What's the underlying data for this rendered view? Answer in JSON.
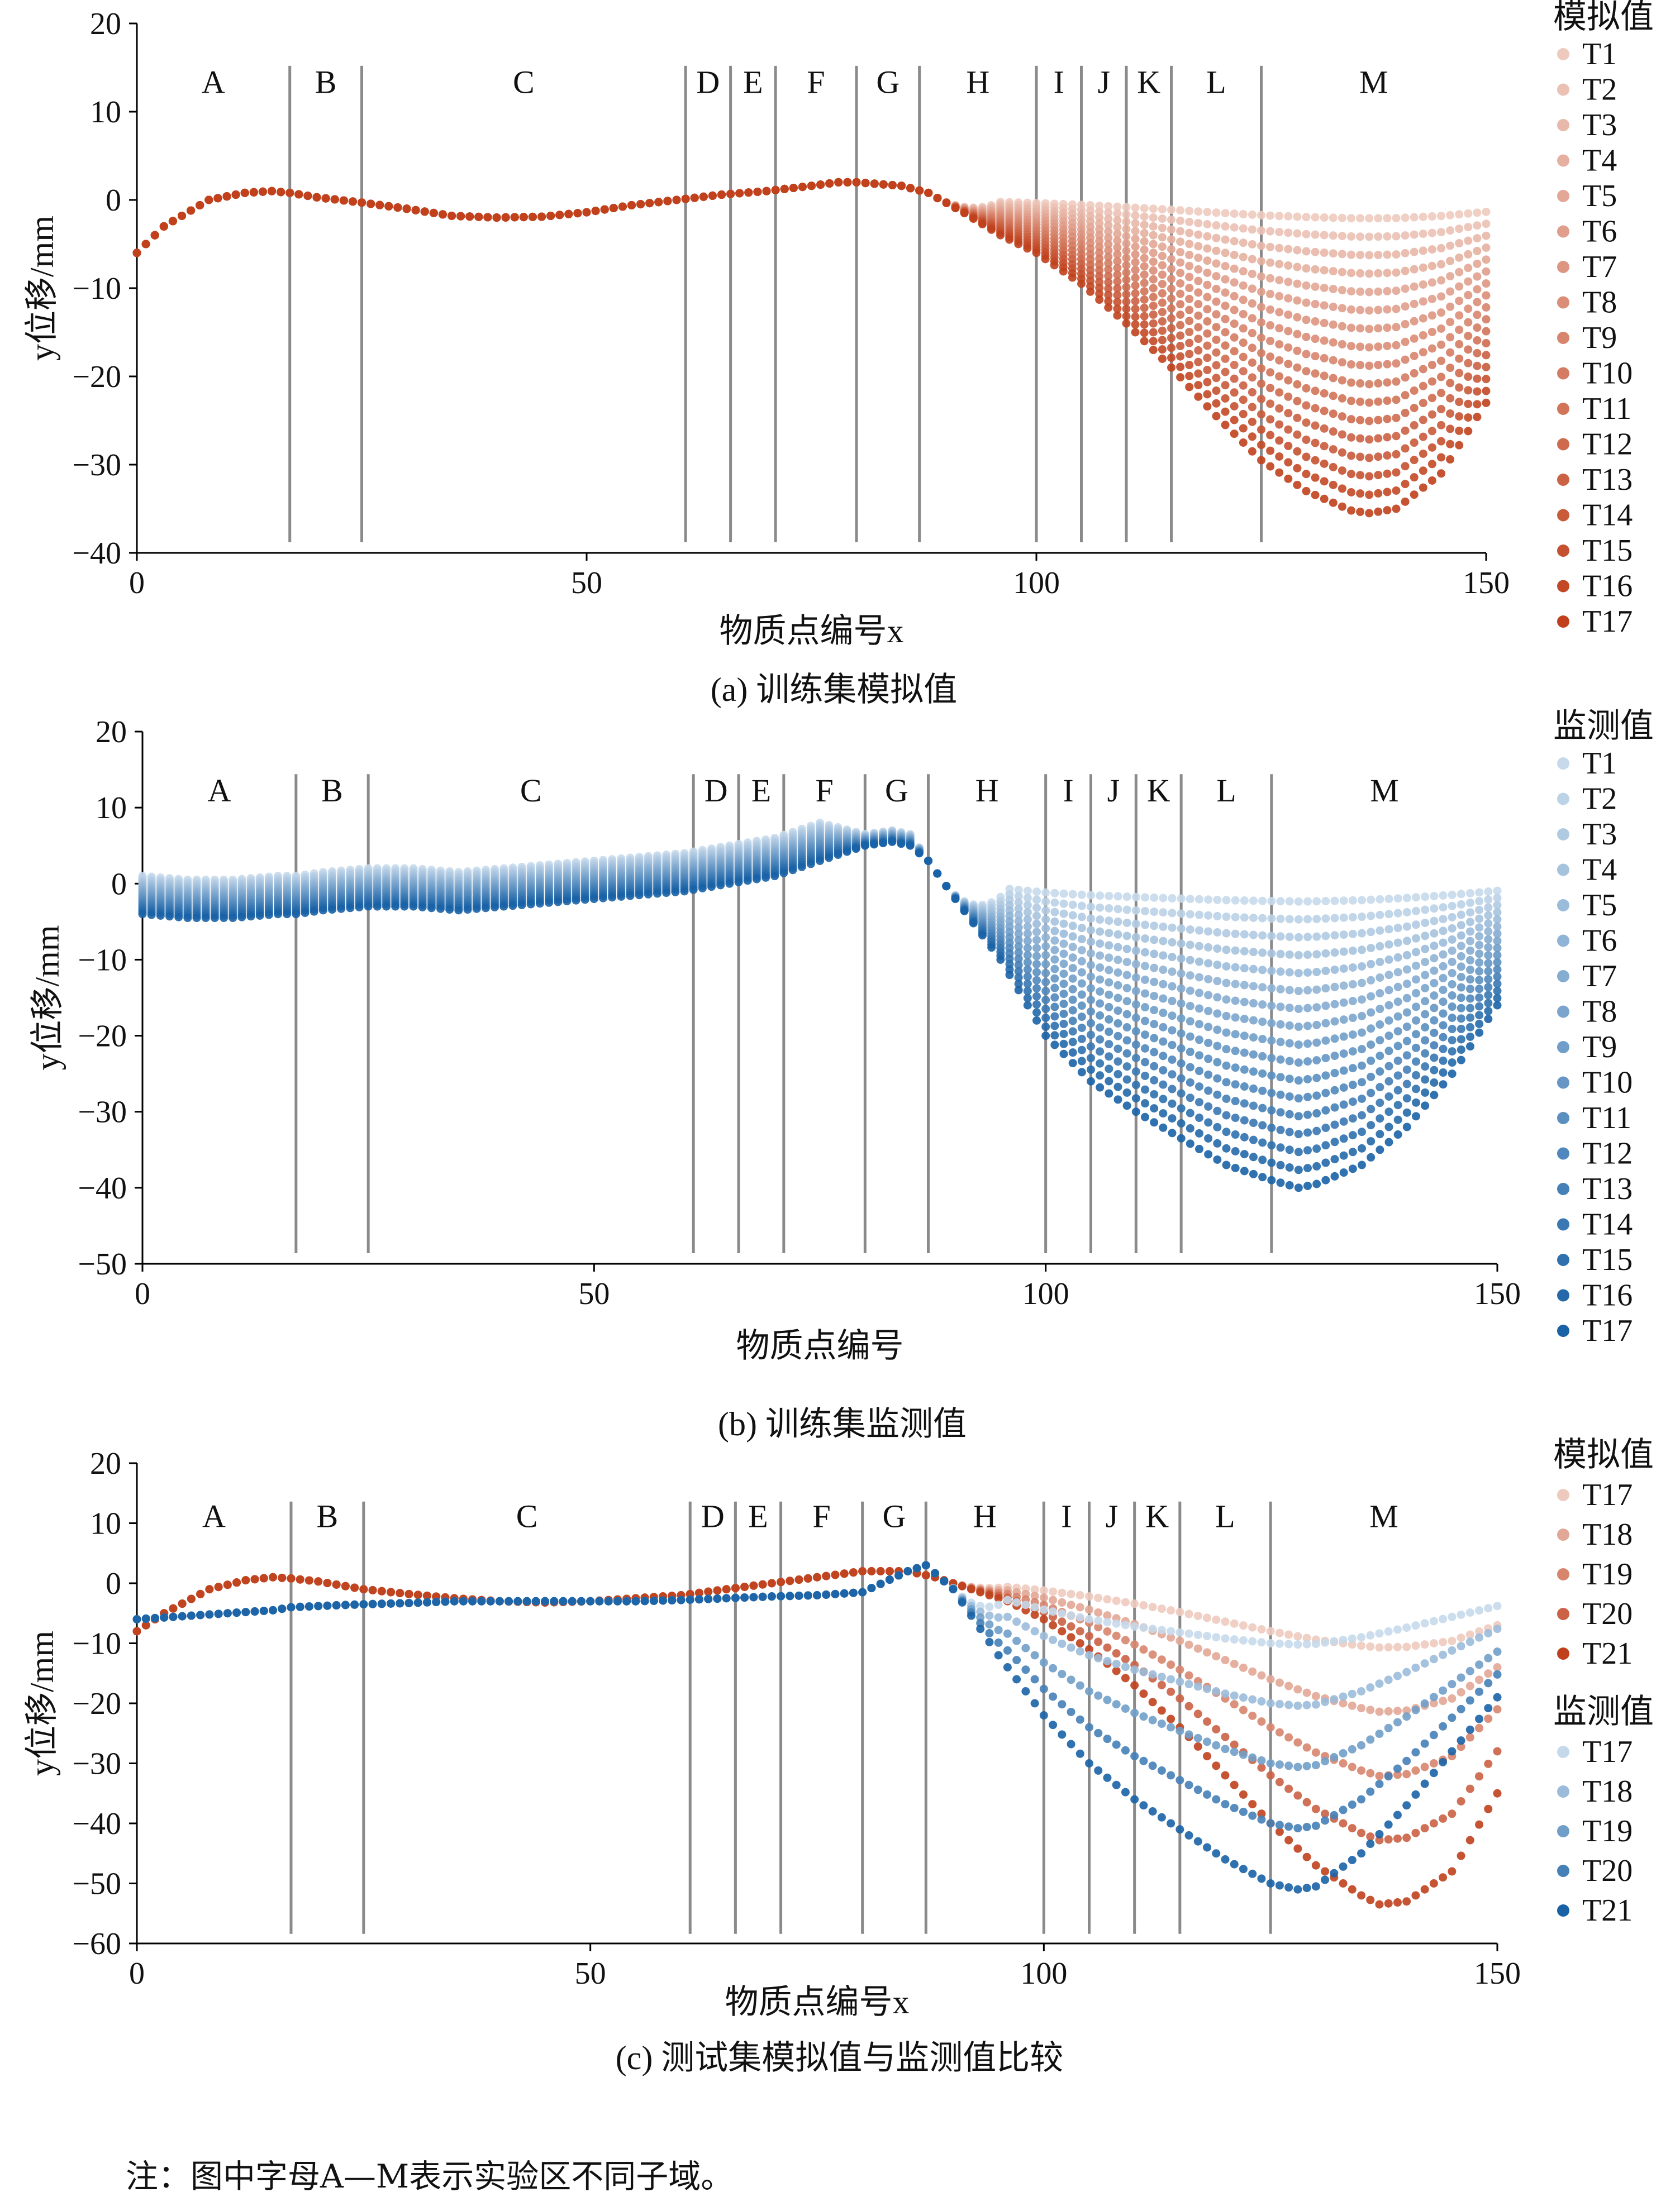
{
  "zone_letters": [
    "A",
    "B",
    "C",
    "D",
    "E",
    "F",
    "G",
    "H",
    "I",
    "J",
    "K",
    "L",
    "M"
  ],
  "zone_boundaries": [
    17,
    25,
    61,
    66,
    71,
    80,
    87,
    100,
    105,
    110,
    115,
    125
  ],
  "colors": {
    "sim_light": "#f6e2db",
    "sim_dark": "#c0401c",
    "mon_light": "#e4eef7",
    "mon_dark": "#1a62a6",
    "boundary_line": "#8a8a8a"
  },
  "note": "注：图中字母A—M表示实验区不同子域。",
  "chart_data": [
    {
      "type": "scatter",
      "caption": "(a) 训练集模拟值",
      "xlabel": "物质点编号x",
      "ylabel": "y位移/mm",
      "xlim": [
        0,
        150
      ],
      "ylim": [
        -40,
        20
      ],
      "xticks": [
        0,
        50,
        100,
        150
      ],
      "yticks": [
        20,
        10,
        0,
        -10,
        -20,
        -30,
        -40
      ],
      "legend_title": "模拟值",
      "legend_placement": "right",
      "series_names": [
        "T1",
        "T2",
        "T3",
        "T4",
        "T5",
        "T6",
        "T7",
        "T8",
        "T9",
        "T10",
        "T11",
        "T12",
        "T13",
        "T14",
        "T15",
        "T16",
        "T17"
      ],
      "note_on_profile": "final series (T17) shape; earlier series scale progressively in the H–M settlement region",
      "profile_x": [
        0,
        3,
        8,
        12,
        15,
        17,
        20,
        25,
        30,
        35,
        40,
        45,
        50,
        55,
        60,
        65,
        70,
        75,
        78,
        80,
        85,
        88,
        92,
        96,
        100,
        105,
        110,
        115,
        120,
        125,
        130,
        135,
        137,
        140,
        145,
        150
      ],
      "profile_y": [
        -6,
        -3,
        0,
        0.8,
        1,
        0.8,
        0.3,
        -0.3,
        -1,
        -1.8,
        -2,
        -1.9,
        -1.4,
        -0.6,
        0,
        0.6,
        1,
        1.6,
        2,
        2,
        1.6,
        0.8,
        -1.5,
        -4,
        -6,
        -9.5,
        -14,
        -19,
        -24.5,
        -29.5,
        -33,
        -35.2,
        -35.5,
        -35,
        -31,
        -23
      ]
    },
    {
      "type": "scatter",
      "caption": "(b) 训练集监测值",
      "xlabel": "物质点编号",
      "ylabel": "y位移/mm",
      "xlim": [
        0,
        150
      ],
      "ylim": [
        -50,
        20
      ],
      "xticks": [
        0,
        50,
        100,
        150
      ],
      "yticks": [
        20,
        10,
        0,
        -10,
        -20,
        -30,
        -40,
        -50
      ],
      "legend_title": "监测值",
      "legend_placement": "right",
      "series_names": [
        "T1",
        "T2",
        "T3",
        "T4",
        "T5",
        "T6",
        "T7",
        "T8",
        "T9",
        "T10",
        "T11",
        "T12",
        "T13",
        "T14",
        "T15",
        "T16",
        "T17"
      ],
      "note_on_profile": "final series (T17) shape; earlier series scale progressively in the H–M settlement region",
      "profile_x": [
        0,
        5,
        10,
        15,
        17,
        20,
        25,
        30,
        35,
        40,
        45,
        50,
        55,
        60,
        65,
        70,
        75,
        80,
        83,
        85,
        87,
        90,
        95,
        100,
        105,
        110,
        115,
        120,
        125,
        128,
        130,
        135,
        140,
        145,
        150
      ],
      "profile_y": [
        -4,
        -4.5,
        -4.5,
        -4,
        -4,
        -3.5,
        -3,
        -3,
        -3.5,
        -3,
        -2.5,
        -2,
        -1.5,
        -1,
        0,
        1,
        3,
        5,
        5.5,
        5,
        3,
        -2,
        -10,
        -20,
        -26,
        -30,
        -33.5,
        -37,
        -39,
        -40,
        -39.5,
        -37,
        -32,
        -25,
        -16
      ]
    },
    {
      "type": "scatter",
      "caption": "(c) 测试集模拟值与监测值比较",
      "xlabel": "物质点编号x",
      "ylabel": "y位移/mm",
      "xlim": [
        0,
        150
      ],
      "ylim": [
        -60,
        20
      ],
      "xticks": [
        0,
        50,
        100,
        150
      ],
      "yticks": [
        20,
        10,
        0,
        -10,
        -20,
        -30,
        -40,
        -50,
        -60
      ],
      "legend_groups": [
        {
          "title": "模拟值",
          "series_names": [
            "T17",
            "T18",
            "T19",
            "T20",
            "T21"
          ]
        },
        {
          "title": "监测值",
          "series_names": [
            "T17",
            "T18",
            "T19",
            "T20",
            "T21"
          ]
        }
      ],
      "legend_placement": "right",
      "note_on_profiles": "T21 shapes; earlier series scale progressively in the settlement region",
      "sim_profile_x": [
        0,
        3,
        8,
        12,
        15,
        17,
        20,
        25,
        30,
        35,
        40,
        45,
        50,
        55,
        60,
        65,
        70,
        75,
        80,
        85,
        88,
        92,
        96,
        100,
        105,
        110,
        115,
        120,
        125,
        130,
        135,
        137,
        140,
        145,
        150
      ],
      "sim_profile_y": [
        -8,
        -5,
        -1,
        0.5,
        1,
        0.8,
        0.3,
        -1,
        -1.8,
        -2.5,
        -3,
        -3.2,
        -3,
        -2.5,
        -2,
        -1,
        0,
        1,
        2,
        2,
        1,
        -1,
        -3,
        -6,
        -11,
        -17,
        -24,
        -32,
        -40,
        -47,
        -52,
        -53.5,
        -53,
        -48,
        -35
      ],
      "mon_profile_x": [
        0,
        5,
        10,
        15,
        17,
        20,
        25,
        30,
        35,
        40,
        45,
        50,
        55,
        60,
        65,
        70,
        75,
        80,
        85,
        87,
        90,
        95,
        100,
        105,
        110,
        115,
        120,
        125,
        128,
        130,
        135,
        140,
        145,
        150
      ],
      "mon_profile_y": [
        -6,
        -5.5,
        -5,
        -4.5,
        -4,
        -3.8,
        -3.5,
        -3.3,
        -3,
        -3,
        -3,
        -3,
        -3,
        -2.8,
        -2.5,
        -2.2,
        -2,
        -1.5,
        2,
        3,
        -1,
        -12,
        -22,
        -30,
        -36,
        -41,
        -46,
        -50,
        -51,
        -50.5,
        -45,
        -37,
        -28,
        -19
      ]
    }
  ]
}
